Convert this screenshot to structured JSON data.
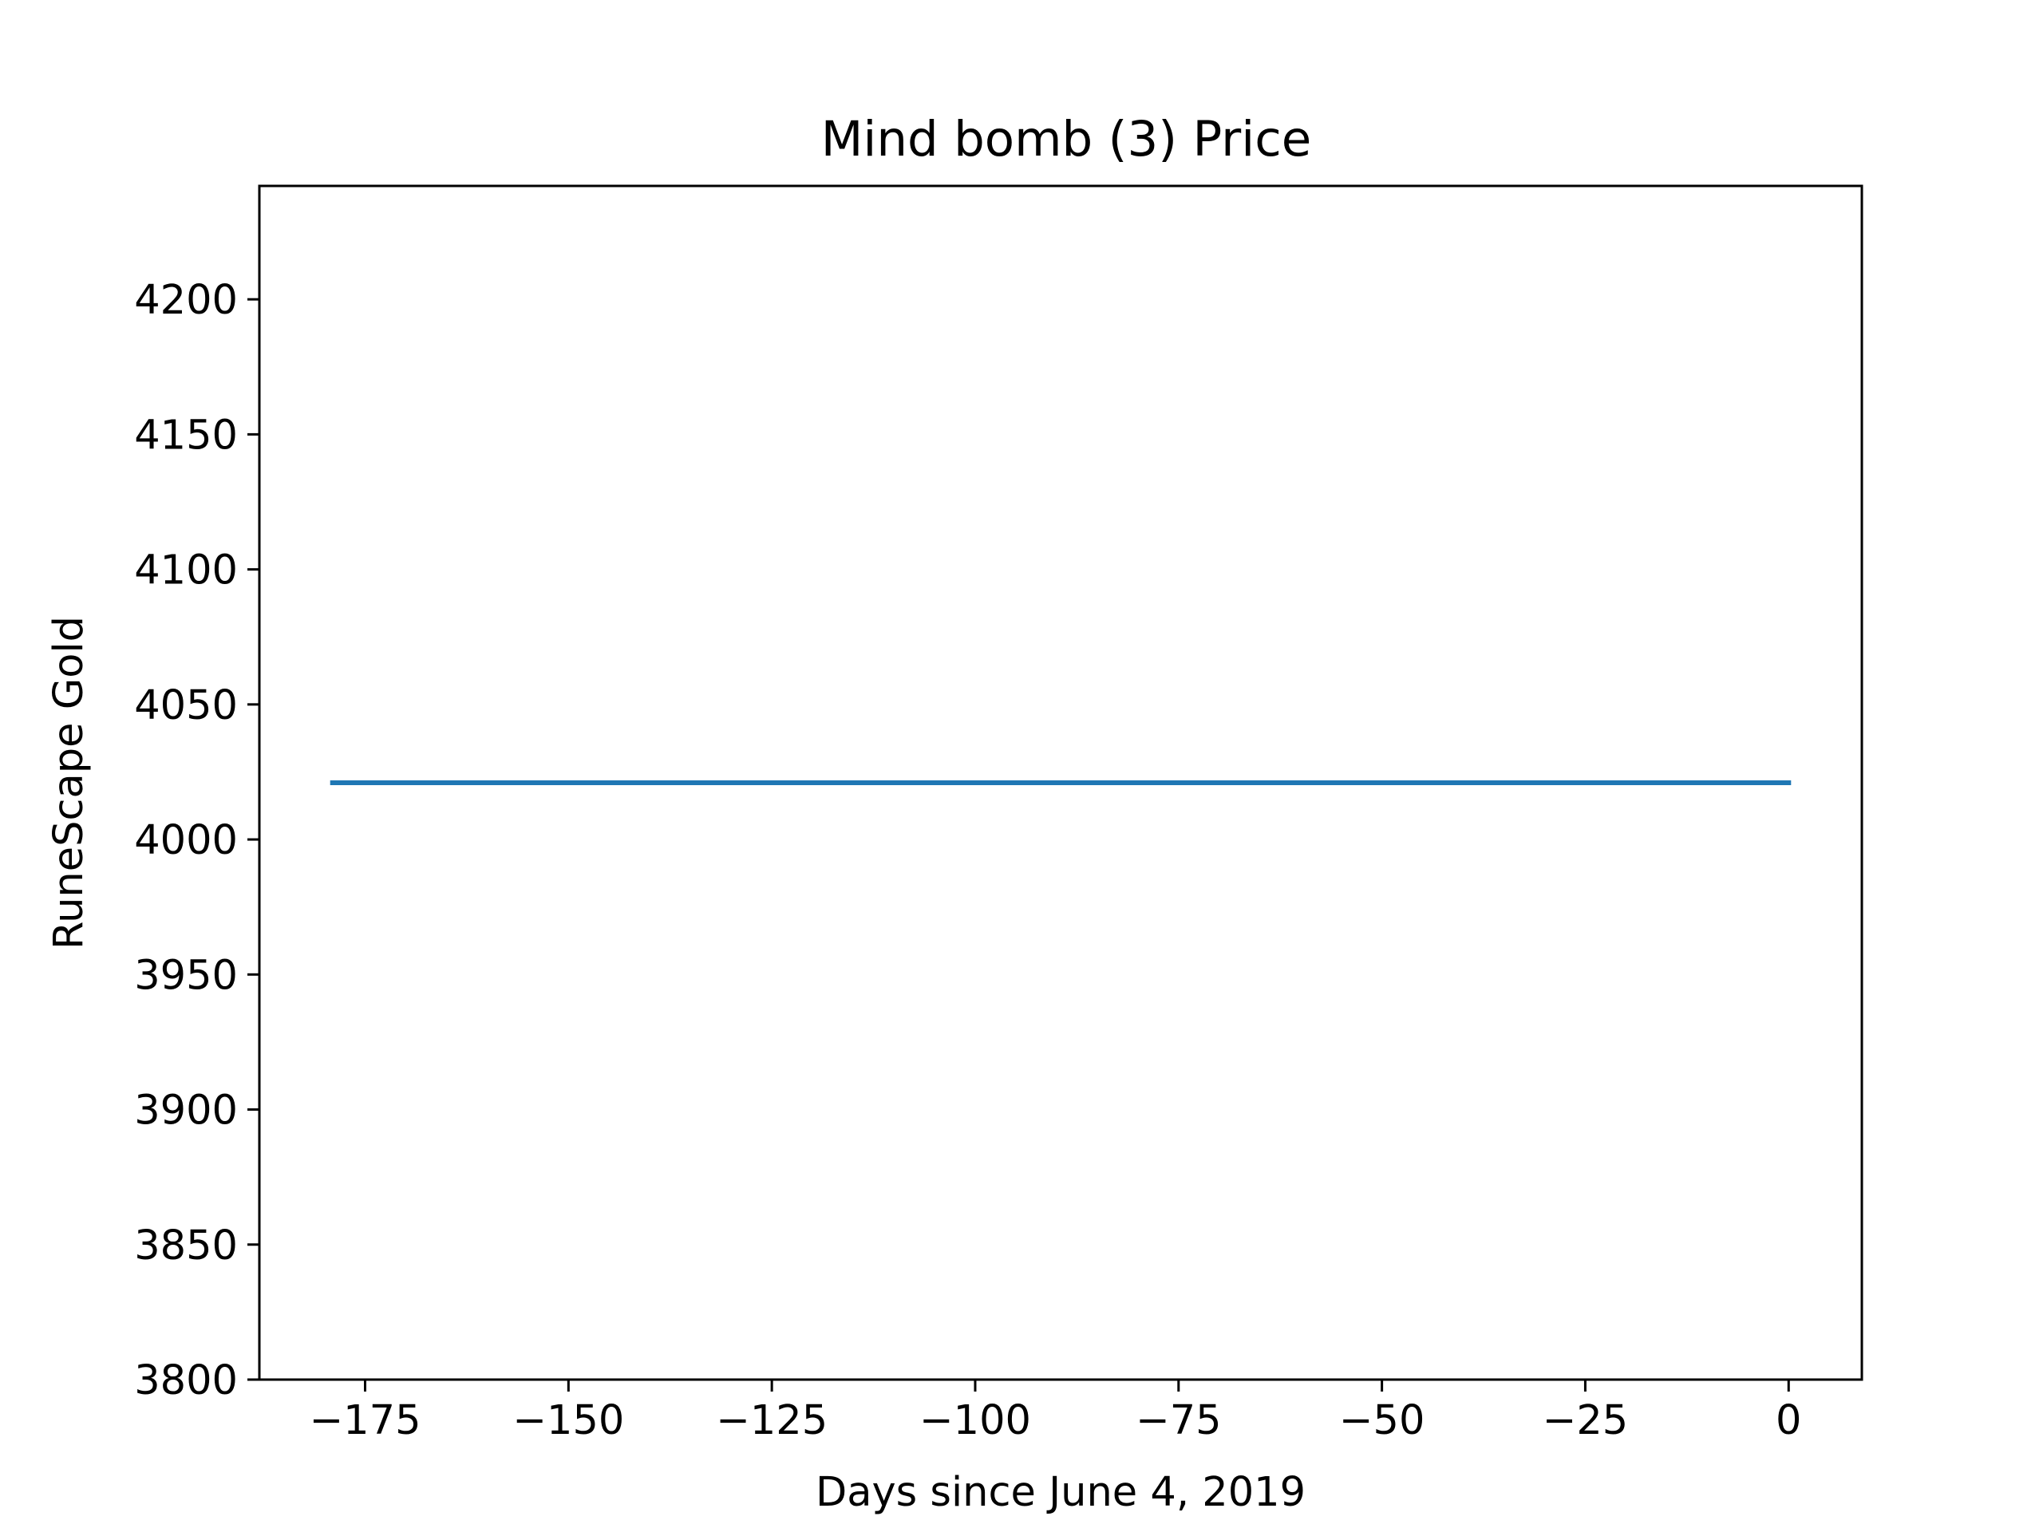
{
  "chart_data": {
    "type": "line",
    "title": "Mind bomb (3) Price",
    "xlabel": "Days since June 4, 2019",
    "ylabel": "RuneScape Gold",
    "xlim": [
      -188,
      9
    ],
    "ylim": [
      3800,
      4242
    ],
    "xticks": [
      -175,
      -150,
      -125,
      -100,
      -75,
      -50,
      -25,
      0
    ],
    "xtick_labels": [
      "−175",
      "−150",
      "−125",
      "−100",
      "−75",
      "−50",
      "−25",
      "0"
    ],
    "yticks": [
      3800,
      3850,
      3900,
      3950,
      4000,
      4050,
      4100,
      4150,
      4200
    ],
    "ytick_labels": [
      "3800",
      "3850",
      "3900",
      "3950",
      "4000",
      "4050",
      "4100",
      "4150",
      "4200"
    ],
    "grid": false,
    "series": [
      {
        "color": "#1f77b4",
        "x": [
          -179,
          -150,
          -125,
          -100,
          -75,
          -50,
          -25,
          0
        ],
        "y": [
          4021,
          4021,
          4021,
          4021,
          4021,
          4021,
          4021,
          4021
        ]
      }
    ]
  }
}
